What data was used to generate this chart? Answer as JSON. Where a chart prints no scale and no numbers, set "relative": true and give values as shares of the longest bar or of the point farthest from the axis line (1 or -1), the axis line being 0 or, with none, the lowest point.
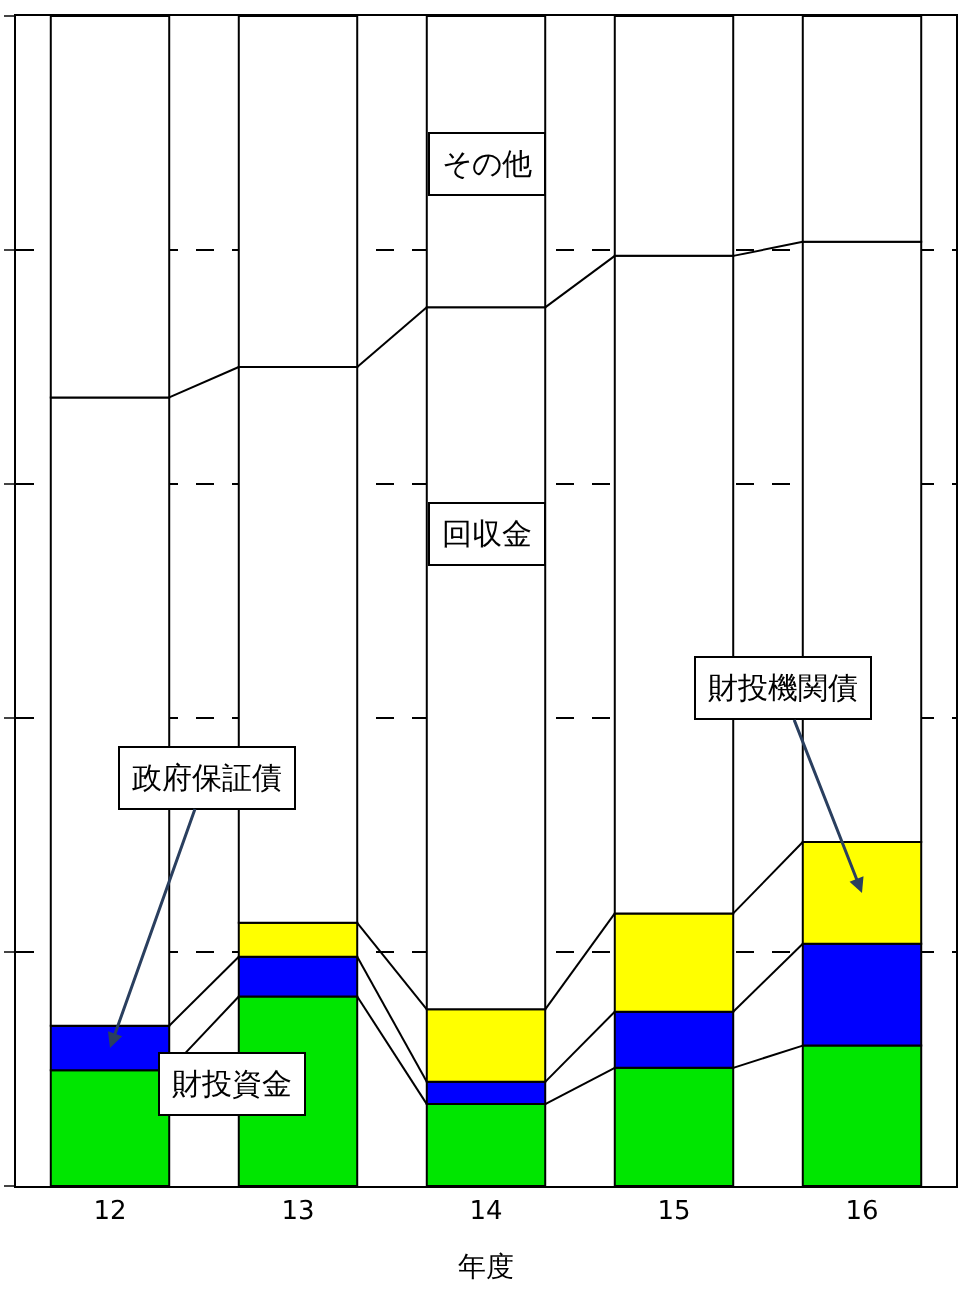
{
  "chart_data": {
    "type": "bar",
    "stacked": true,
    "relative": true,
    "xlabel": "年度",
    "categories": [
      "12",
      "13",
      "14",
      "15",
      "16"
    ],
    "series": [
      {
        "name": "財投資金",
        "color": "#00e600",
        "values": [
          0.099,
          0.162,
          0.07,
          0.101,
          0.12
        ]
      },
      {
        "name": "政府保証債",
        "color": "#0000ff",
        "values": [
          0.038,
          0.034,
          0.019,
          0.048,
          0.087
        ]
      },
      {
        "name": "財投機関債",
        "color": "#ffff00",
        "values": [
          0.0,
          0.029,
          0.062,
          0.084,
          0.087
        ]
      },
      {
        "name": "回収金",
        "color": "#ffffff",
        "values": [
          0.537,
          0.475,
          0.6,
          0.562,
          0.513
        ]
      },
      {
        "name": "その他",
        "color": "#ffffff",
        "values": [
          0.326,
          0.3,
          0.249,
          0.205,
          0.193
        ]
      }
    ],
    "grid": "y",
    "legend": false
  }
}
